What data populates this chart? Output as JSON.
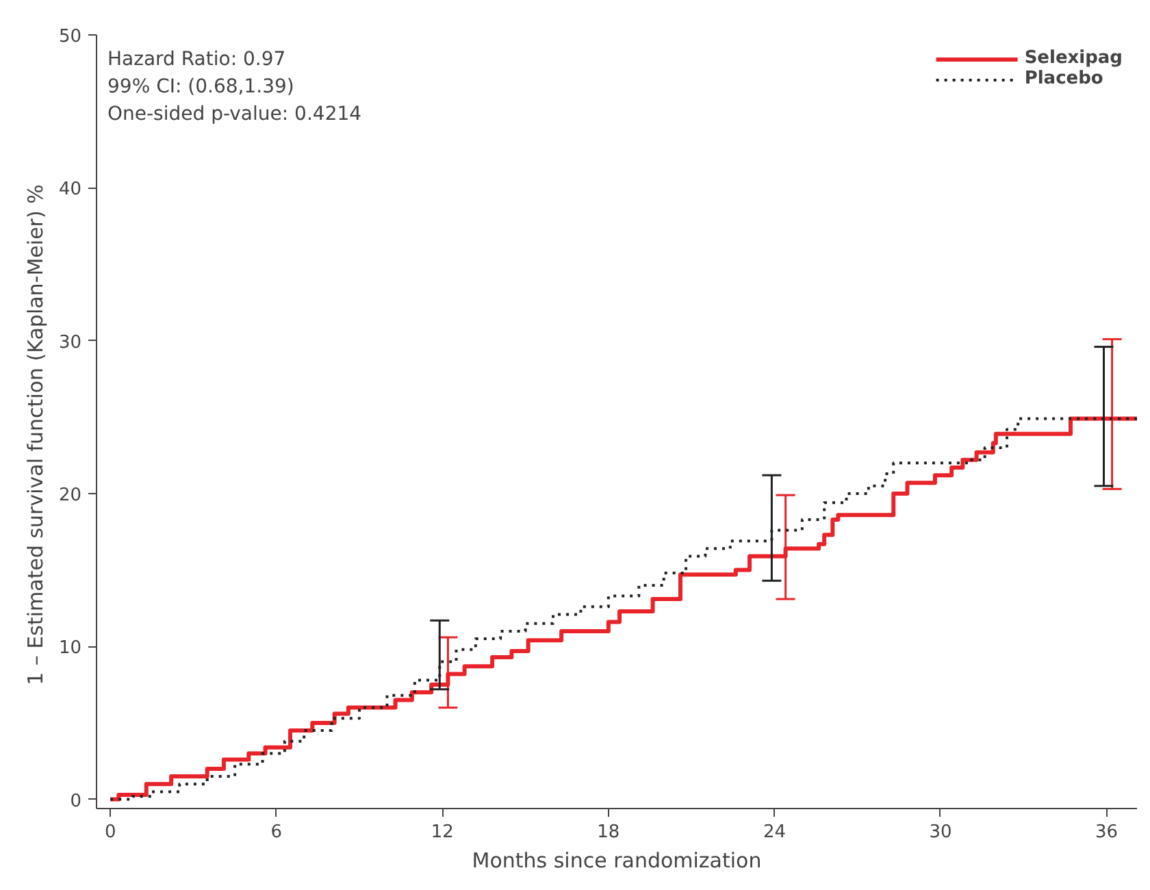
{
  "chart_data": {
    "type": "step",
    "xlabel": "Months since randomization",
    "ylabel": "1 – Estimated survival function (Kaplan-Meier)     %",
    "annotations": [
      "Hazard Ratio: 0.97",
      "99% CI: (0.68,1.39)",
      "One-sided p-value: 0.4214"
    ],
    "xlim": [
      -0.5,
      37.1
    ],
    "xticks": [
      0,
      6,
      12,
      18,
      24,
      30,
      36
    ],
    "ylim": [
      -0.6,
      50
    ],
    "yticks": [
      0,
      10,
      20,
      30,
      40,
      50
    ],
    "grid": false,
    "legend": "top right",
    "series": [
      {
        "name": "Selexipag",
        "color": "#e8242a",
        "line_style": "solid",
        "x": [
          0,
          0.3,
          1.3,
          2.2,
          3.5,
          4.1,
          5.0,
          5.6,
          6.5,
          7.3,
          8.1,
          8.6,
          10.3,
          10.9,
          11.6,
          12.2,
          12.8,
          13.8,
          14.5,
          15.1,
          16.3,
          18.0,
          18.4,
          19.6,
          20.6,
          22.6,
          23.1,
          24.4,
          25.6,
          25.8,
          26.1,
          26.3,
          28.3,
          28.8,
          29.8,
          30.4,
          30.8,
          31.3,
          31.9,
          32.0,
          34.7,
          36.2,
          37.1
        ],
        "values": [
          0,
          0.3,
          1.0,
          1.5,
          2.0,
          2.6,
          3.0,
          3.4,
          4.5,
          5.0,
          5.6,
          6.0,
          6.5,
          7.0,
          7.5,
          8.2,
          8.7,
          9.3,
          9.7,
          10.4,
          11.0,
          11.6,
          12.3,
          13.1,
          14.7,
          15.0,
          15.9,
          16.4,
          16.7,
          17.3,
          18.3,
          18.6,
          20.0,
          20.7,
          21.2,
          21.7,
          22.2,
          22.7,
          23.3,
          23.9,
          24.9,
          24.9,
          24.9
        ],
        "errors": [
          null,
          null,
          null,
          null,
          null,
          null,
          null,
          null,
          null,
          null,
          null,
          null,
          null,
          null,
          null,
          [
            6.0,
            10.6
          ],
          null,
          null,
          null,
          null,
          null,
          null,
          null,
          null,
          null,
          null,
          null,
          [
            13.1,
            19.9
          ],
          null,
          null,
          null,
          null,
          null,
          null,
          null,
          null,
          null,
          null,
          null,
          null,
          null,
          [
            20.3,
            30.1
          ],
          null
        ]
      },
      {
        "name": "Placebo",
        "color": "#222222",
        "line_style": "dotted",
        "x": [
          0,
          0.8,
          1.5,
          2.5,
          3.5,
          4.5,
          5.5,
          6.3,
          7.0,
          8.0,
          9.0,
          10.0,
          11.0,
          11.9,
          12.5,
          13.2,
          14.1,
          15.0,
          16.0,
          17.0,
          18.0,
          19.1,
          20.0,
          20.8,
          21.5,
          22.4,
          23.9,
          25.0,
          25.8,
          26.6,
          27.4,
          28.0,
          28.3,
          31.0,
          31.6,
          32.4,
          32.8,
          35.9,
          37.1
        ],
        "values": [
          0,
          0.2,
          0.5,
          1.0,
          1.5,
          2.3,
          3.0,
          3.8,
          4.5,
          5.3,
          6.0,
          6.8,
          7.8,
          9.0,
          9.8,
          10.5,
          11.0,
          11.5,
          12.1,
          12.6,
          13.3,
          14.0,
          14.8,
          15.9,
          16.4,
          16.9,
          17.6,
          18.3,
          19.4,
          20.0,
          20.5,
          21.3,
          22.0,
          22.2,
          23.0,
          24.2,
          24.9,
          24.9,
          24.9
        ],
        "errors": [
          null,
          null,
          null,
          null,
          null,
          null,
          null,
          null,
          null,
          null,
          null,
          null,
          null,
          [
            7.2,
            11.7
          ],
          null,
          null,
          null,
          null,
          null,
          null,
          null,
          null,
          null,
          null,
          null,
          null,
          [
            14.3,
            21.2
          ],
          null,
          null,
          null,
          null,
          null,
          null,
          null,
          null,
          null,
          null,
          [
            20.5,
            29.6
          ],
          null
        ]
      }
    ]
  }
}
